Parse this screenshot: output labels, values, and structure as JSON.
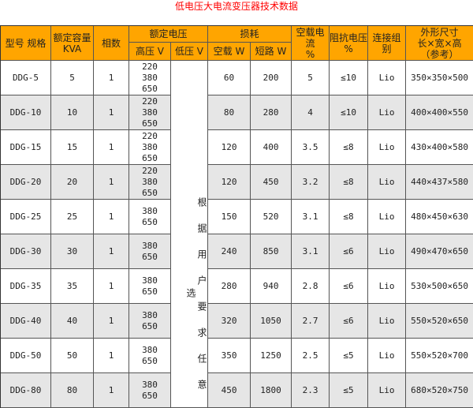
{
  "title": "低电压大电流变压器技术数据",
  "headers": {
    "model": "型号 规格",
    "capacity": "额定容量\nKVA",
    "phases": "相数",
    "rated_voltage": "额定电压",
    "high_v": "高压 V",
    "low_v": "低压 V",
    "loss": "损耗",
    "no_load_w": "空载 W",
    "short_w": "短路 W",
    "no_load_current": "空载电流\n%",
    "impedance": "阻抗电压\n%",
    "connection": "连接组别",
    "dimensions": "外形尺寸\n长×宽×高\n（参考）"
  },
  "low_voltage_note": "根据用户要求任意选",
  "rows": [
    {
      "model": "DDG-5",
      "kva": "5",
      "phase": "1",
      "hv": "220\n380\n650",
      "nl": "60",
      "sc": "200",
      "i0": "5",
      "uk": "≤10",
      "conn": "Lio",
      "dim": "350×350×500"
    },
    {
      "model": "DDG-10",
      "kva": "10",
      "phase": "1",
      "hv": "220\n380\n650",
      "nl": "80",
      "sc": "280",
      "i0": "4",
      "uk": "≤10",
      "conn": "Lio",
      "dim": "400×400×550"
    },
    {
      "model": "DDG-15",
      "kva": "15",
      "phase": "1",
      "hv": "220\n380\n650",
      "nl": "120",
      "sc": "400",
      "i0": "3.5",
      "uk": "≤8",
      "conn": "Lio",
      "dim": "430×400×580"
    },
    {
      "model": "DDG-20",
      "kva": "20",
      "phase": "1",
      "hv": "220\n380\n650",
      "nl": "120",
      "sc": "450",
      "i0": "3.2",
      "uk": "≤8",
      "conn": "Lio",
      "dim": "440×437×580"
    },
    {
      "model": "DDG-25",
      "kva": "25",
      "phase": "1",
      "hv": "380\n650",
      "nl": "150",
      "sc": "520",
      "i0": "3.1",
      "uk": "≤8",
      "conn": "Lio",
      "dim": "480×450×630"
    },
    {
      "model": "DDG-30",
      "kva": "30",
      "phase": "1",
      "hv": "380\n650",
      "nl": "240",
      "sc": "850",
      "i0": "3.1",
      "uk": "≤6",
      "conn": "Lio",
      "dim": "490×470×650"
    },
    {
      "model": "DDG-35",
      "kva": "35",
      "phase": "1",
      "hv": "380\n650",
      "nl": "280",
      "sc": "940",
      "i0": "2.8",
      "uk": "≤6",
      "conn": "Lio",
      "dim": "530×500×650"
    },
    {
      "model": "DDG-40",
      "kva": "40",
      "phase": "1",
      "hv": "380\n650",
      "nl": "320",
      "sc": "1050",
      "i0": "2.7",
      "uk": "≤6",
      "conn": "Lio",
      "dim": "550×520×650"
    },
    {
      "model": "DDG-50",
      "kva": "50",
      "phase": "1",
      "hv": "380\n650",
      "nl": "350",
      "sc": "1250",
      "i0": "2.5",
      "uk": "≤5",
      "conn": "Lio",
      "dim": "550×520×700"
    },
    {
      "model": "DDG-80",
      "kva": "80",
      "phase": "1",
      "hv": "380\n650",
      "nl": "450",
      "sc": "1800",
      "i0": "2.3",
      "uk": "≤5",
      "conn": "Lio",
      "dim": "680×520×750"
    }
  ],
  "colors": {
    "header": "#ffa500",
    "title": "#ff0000",
    "alt_row": "#e6e6e6"
  }
}
